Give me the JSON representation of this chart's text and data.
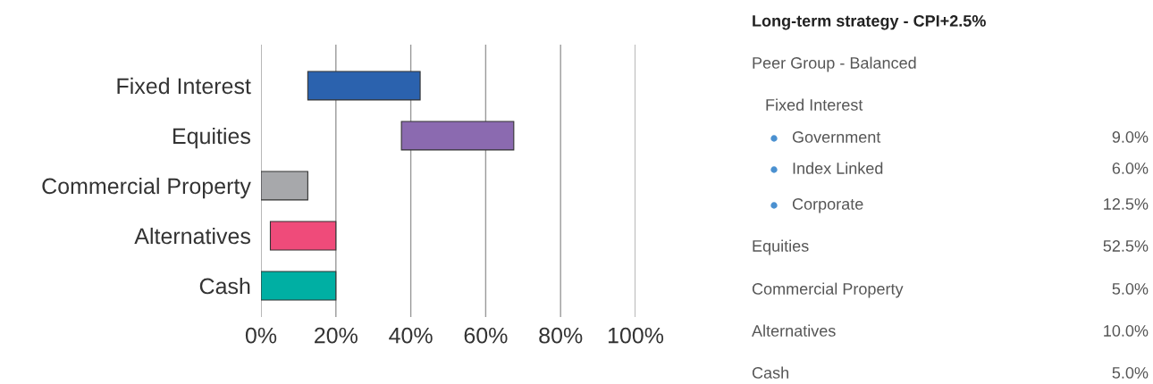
{
  "chart_data": [
    {
      "type": "bar",
      "orientation": "horizontal",
      "categories": [
        "Fixed Interest",
        "Equities",
        "Commercial Property",
        "Alternatives",
        "Cash"
      ],
      "base": [
        12.5,
        37.5,
        0,
        2.5,
        0
      ],
      "values": [
        30,
        30,
        12.5,
        17.5,
        20
      ],
      "colors": [
        "#2b62ae",
        "#8b6ab0",
        "#a7a8ab",
        "#ef4b7a",
        "#00afa3"
      ],
      "xlim": [
        0,
        100
      ],
      "xticks": [
        {
          "value": 0,
          "label": "0%"
        },
        {
          "value": 20,
          "label": "20%"
        },
        {
          "value": 40,
          "label": "40%"
        },
        {
          "value": 60,
          "label": "60%"
        },
        {
          "value": 80,
          "label": "80%"
        },
        {
          "value": 100,
          "label": "100%"
        }
      ],
      "grid": "x"
    },
    {
      "type": "other",
      "title": "Long-term strategy - CPI+2.5%",
      "subtitle": "Peer Group - Balanced",
      "annotations": [
        "Fixed Interest",
        "Government",
        "9.0%",
        "Index Linked",
        "6.0%",
        "Corporate",
        "12.5%",
        "Equities",
        "52.5%",
        "Commercial Property",
        "5.0%",
        "Alternatives",
        "10.0%",
        "Cash",
        "5.0%"
      ]
    }
  ]
}
